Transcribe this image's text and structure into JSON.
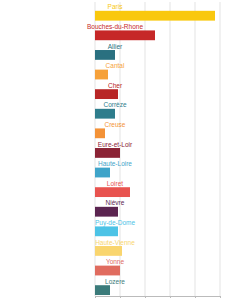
{
  "chart_data": {
    "type": "bar",
    "orientation": "horizontal",
    "categories": [
      "Paris",
      "Bouches-du-Rhone",
      "Allier",
      "Cantal",
      "Cher",
      "Corrèze",
      "Creuse",
      "Eure-et-Loir",
      "Haute-Loire",
      "Loiret",
      "Nièvre",
      "Puy-de-Dome",
      "Haute-Vienne",
      "Yonne",
      "Lozere"
    ],
    "values": [
      120,
      60,
      20,
      13,
      23,
      20,
      10,
      25,
      15,
      35,
      23,
      23,
      27,
      25,
      15
    ],
    "colors": [
      "#f9c80e",
      "#c62828",
      "#2a7080",
      "#f6a13a",
      "#b82626",
      "#2e7d8c",
      "#f39237",
      "#8b2335",
      "#3fa4c9",
      "#e8534f",
      "#5b2450",
      "#4cc3e6",
      "#f9d56e",
      "#e06c5f",
      "#3b7b7a"
    ],
    "xlim": [
      0,
      125
    ],
    "xticks": [
      0,
      25,
      50,
      75,
      100,
      125
    ],
    "grid": true,
    "tick_labels": false
  }
}
